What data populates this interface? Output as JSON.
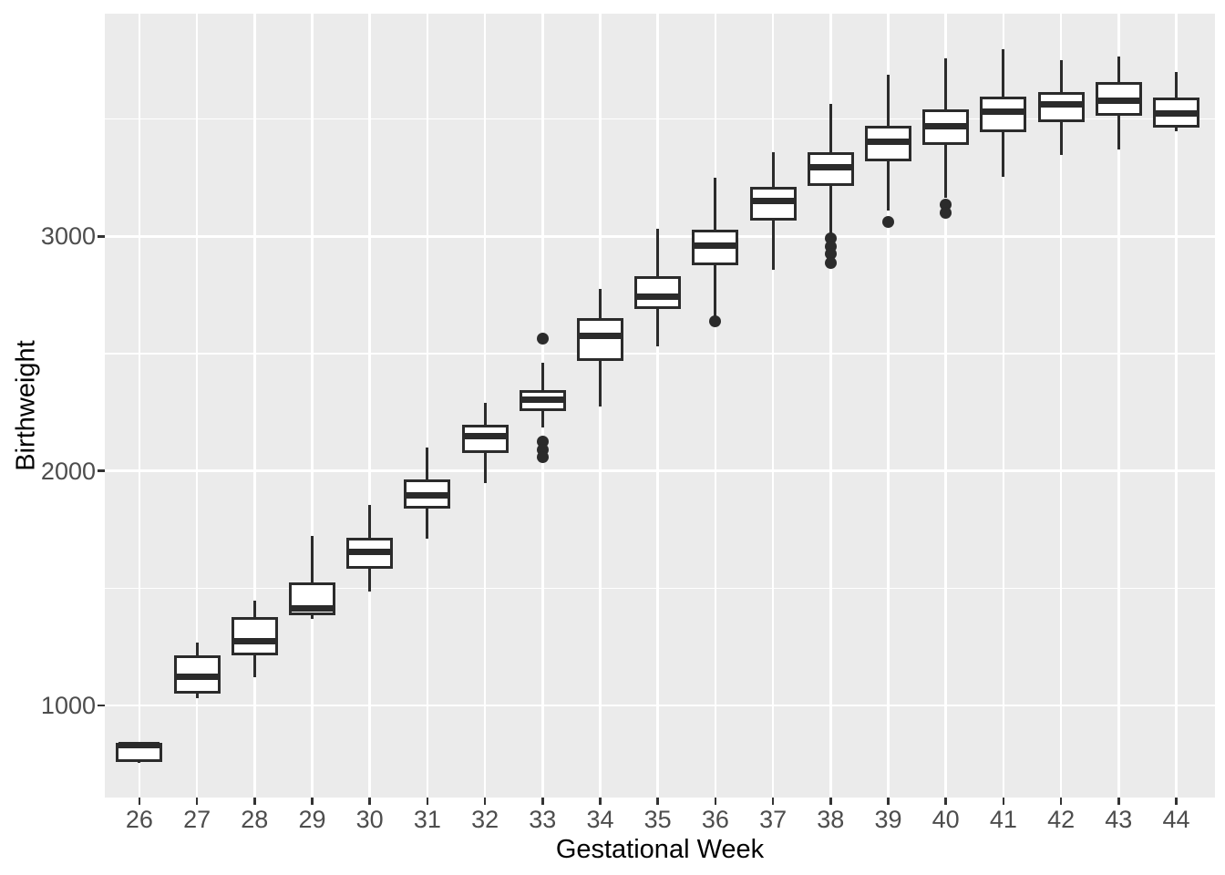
{
  "chart_data": {
    "type": "boxplot",
    "title": "",
    "xlabel": "Gestational Week",
    "ylabel": "Birthweight",
    "categories": [
      26,
      27,
      28,
      29,
      30,
      31,
      32,
      33,
      34,
      35,
      36,
      37,
      38,
      39,
      40,
      41,
      42,
      43,
      44
    ],
    "y_axis": {
      "tick_values": [
        1000,
        2000,
        3000
      ],
      "tick_labels": [
        "1000",
        "2000",
        "3000"
      ],
      "minor_gridlines": [
        1500,
        2500,
        3500
      ],
      "domain": [
        607,
        3950
      ]
    },
    "legend": "none",
    "grid": "on",
    "boxes": [
      {
        "week": 26,
        "min": 755,
        "q1": 759,
        "median": 830,
        "q3": 840,
        "max": 845,
        "outliers": []
      },
      {
        "week": 27,
        "min": 1032,
        "q1": 1051,
        "median": 1122,
        "q3": 1213,
        "max": 1266,
        "outliers": []
      },
      {
        "week": 28,
        "min": 1120,
        "q1": 1214,
        "median": 1275,
        "q3": 1376,
        "max": 1447,
        "outliers": []
      },
      {
        "week": 29,
        "min": 1367,
        "q1": 1385,
        "median": 1415,
        "q3": 1523,
        "max": 1721,
        "outliers": []
      },
      {
        "week": 30,
        "min": 1485,
        "q1": 1583,
        "median": 1655,
        "q3": 1713,
        "max": 1855,
        "outliers": []
      },
      {
        "week": 31,
        "min": 1709,
        "q1": 1838,
        "median": 1897,
        "q3": 1964,
        "max": 2100,
        "outliers": []
      },
      {
        "week": 32,
        "min": 1950,
        "q1": 2076,
        "median": 2147,
        "q3": 2197,
        "max": 2292,
        "outliers": []
      },
      {
        "week": 33,
        "min": 2184,
        "q1": 2256,
        "median": 2305,
        "q3": 2344,
        "max": 2460,
        "outliers": [
          2564,
          2124,
          2091,
          2059
        ]
      },
      {
        "week": 34,
        "min": 2275,
        "q1": 2470,
        "median": 2577,
        "q3": 2650,
        "max": 2778,
        "outliers": []
      },
      {
        "week": 35,
        "min": 2532,
        "q1": 2690,
        "median": 2743,
        "q3": 2832,
        "max": 3034,
        "outliers": []
      },
      {
        "week": 36,
        "min": 2653,
        "q1": 2879,
        "median": 2962,
        "q3": 3030,
        "max": 3251,
        "outliers": [
          2638
        ]
      },
      {
        "week": 37,
        "min": 2858,
        "q1": 3069,
        "median": 3150,
        "q3": 3212,
        "max": 3358,
        "outliers": []
      },
      {
        "week": 38,
        "min": 3010,
        "q1": 3216,
        "median": 3296,
        "q3": 3361,
        "max": 3564,
        "outliers": [
          2990,
          2958,
          2924,
          2888
        ]
      },
      {
        "week": 39,
        "min": 3112,
        "q1": 3319,
        "median": 3404,
        "q3": 3471,
        "max": 3691,
        "outliers": [
          3063
        ]
      },
      {
        "week": 40,
        "min": 3166,
        "q1": 3389,
        "median": 3468,
        "q3": 3540,
        "max": 3760,
        "outliers": [
          3134,
          3101
        ]
      },
      {
        "week": 41,
        "min": 3255,
        "q1": 3445,
        "median": 3533,
        "q3": 3597,
        "max": 3799,
        "outliers": []
      },
      {
        "week": 42,
        "min": 3348,
        "q1": 3488,
        "median": 3562,
        "q3": 3617,
        "max": 3752,
        "outliers": []
      },
      {
        "week": 43,
        "min": 3371,
        "q1": 3514,
        "median": 3578,
        "q3": 3659,
        "max": 3769,
        "outliers": []
      },
      {
        "week": 44,
        "min": 3448,
        "q1": 3465,
        "median": 3523,
        "q3": 3594,
        "max": 3700,
        "outliers": []
      }
    ],
    "colors": {
      "panel_background": "#EBEBEB",
      "gridline": "#FFFFFF",
      "box_stroke": "#2B2B2B",
      "box_fill": "#FFFFFF",
      "outlier": "#2B2B2B",
      "tick_mark": "#333333",
      "tick_label": "#4D4D4D",
      "axis_title": "#000000",
      "figure_background": "#FFFFFF"
    }
  }
}
